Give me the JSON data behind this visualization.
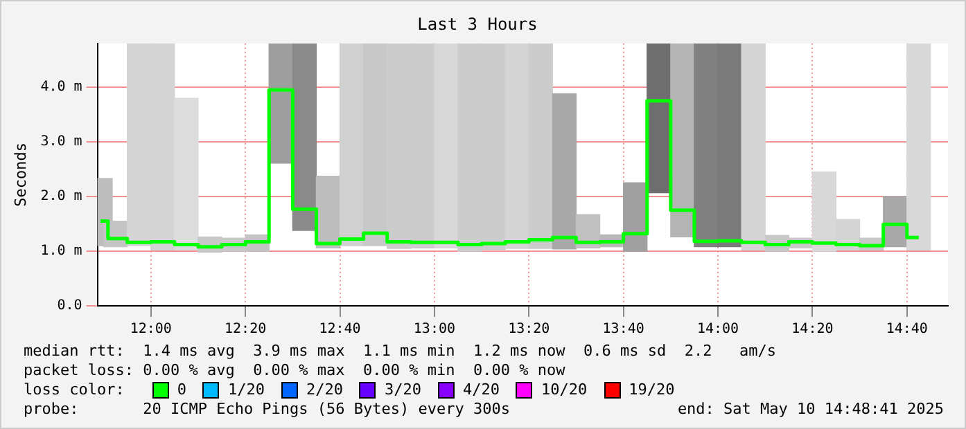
{
  "chart_data": {
    "type": "bar",
    "title": "Last 3 Hours",
    "ylabel": "Seconds",
    "x": [
      11.8222,
      11.875,
      11.9583,
      12.0417,
      12.125,
      12.2083,
      12.2917,
      12.375,
      12.4583,
      12.5417,
      12.625,
      12.7083,
      12.7917,
      12.875,
      12.9583,
      13.0417,
      13.125,
      13.2083,
      13.2917,
      13.375,
      13.4583,
      13.5417,
      13.625,
      13.7083,
      13.7917,
      13.875,
      13.9583,
      14.0417,
      14.125,
      14.2083,
      14.2917,
      14.375,
      14.4583,
      14.5417,
      14.625,
      14.7083
    ],
    "series": [
      {
        "colors": [
          "#bdbdbd",
          "#c4c4c4",
          "#d4d4d4",
          "#d4d4d4",
          "#dcdcdc",
          "#c8c8c8",
          "#c8c8c8",
          "#c4c4c4",
          "#9e9e9e",
          "#8a8a8a",
          "#bdbdbd",
          "#d0d0d0",
          "#c8c8c8",
          "#cccccc",
          "#cccccc",
          "#d8d8d8",
          "#cccccc",
          "#cccccc",
          "#d4d4d4",
          "#cccccc",
          "#a8a8a8",
          "#c0c0c0",
          "#b8b8b8",
          "#a0a0a0",
          "#6e6e6e",
          "#b4b4b4",
          "#808080",
          "#7a7a7a",
          "#d4d4d4",
          "#c8c8c8",
          "#c8c8c8",
          "#d8d8d8",
          "#d4d4d4",
          "#c8c8c8",
          "#a8a8a8",
          "#d8d8d8"
        ],
        "base": [
          1.1,
          1.08,
          1.1,
          1.02,
          1.02,
          0.98,
          1.0,
          1.0,
          2.61,
          1.38,
          1.06,
          1.1,
          1.1,
          1.05,
          1.06,
          1.06,
          1.0,
          1.03,
          1.05,
          1.05,
          1.04,
          1.06,
          1.08,
          1.0,
          2.07,
          1.26,
          1.08,
          1.08,
          1.02,
          1.0,
          1.06,
          1.0,
          1.02,
          1.02,
          1.08,
          1.02
        ],
        "values": [
          1.23,
          0.47,
          3.7,
          3.78,
          2.78,
          0.28,
          0.24,
          0.3,
          2.19,
          3.42,
          1.31,
          3.7,
          3.7,
          3.75,
          3.74,
          3.74,
          3.8,
          3.77,
          3.75,
          3.75,
          2.84,
          0.61,
          0.22,
          1.25,
          2.73,
          3.54,
          3.72,
          3.72,
          3.78,
          0.29,
          0.18,
          1.45,
          0.56,
          0.22,
          0.92,
          3.78
        ]
      },
      {
        "type": "step",
        "color": "#00ff00",
        "values": [
          1.55,
          1.23,
          1.16,
          1.17,
          1.12,
          1.08,
          1.12,
          1.17,
          3.95,
          1.77,
          1.14,
          1.22,
          1.33,
          1.17,
          1.16,
          1.16,
          1.12,
          1.14,
          1.17,
          1.21,
          1.25,
          1.16,
          1.17,
          1.32,
          3.75,
          1.75,
          1.18,
          1.19,
          1.16,
          1.12,
          1.17,
          1.15,
          1.12,
          1.1,
          1.49,
          1.25
        ]
      }
    ],
    "xlim": [
      11.8114,
      14.8114
    ],
    "xticks": [
      {
        "value": 12,
        "label": "12:00"
      },
      {
        "value": 12.3333,
        "label": "12:20"
      },
      {
        "value": 12.6667,
        "label": "12:40"
      },
      {
        "value": 13,
        "label": "13:00"
      },
      {
        "value": 13.3333,
        "label": "13:20"
      },
      {
        "value": 13.6667,
        "label": "13:40"
      },
      {
        "value": 14,
        "label": "14:00"
      },
      {
        "value": 14.3333,
        "label": "14:20"
      },
      {
        "value": 14.6667,
        "label": "14:40"
      }
    ],
    "ylim": [
      0,
      4.8
    ],
    "yticks": [
      {
        "value": 0,
        "label": "0.0"
      },
      {
        "value": 1,
        "label": "1.0 m"
      },
      {
        "value": 2,
        "label": "2.0 m"
      },
      {
        "value": 3,
        "label": "3.0 m"
      },
      {
        "value": 4,
        "label": "4.0 m"
      }
    ],
    "grid": true,
    "legend": false,
    "annotations": [
      "median rtt:  1.4 ms avg  3.9 ms max  1.1 ms min  1.2 ms now  0.6 ms sd  2.2   am/s",
      "packet loss: 0.00 % avg  0.00 % max  0.00 % min  0.00 % now",
      "loss color:",
      "0",
      "1/20",
      "2/20",
      "3/20",
      "4/20",
      "10/20",
      "19/20",
      "probe:       20 ICMP Echo Pings (56 Bytes) every 300s",
      "end: Sat May 10 14:48:41 2025"
    ]
  }
}
